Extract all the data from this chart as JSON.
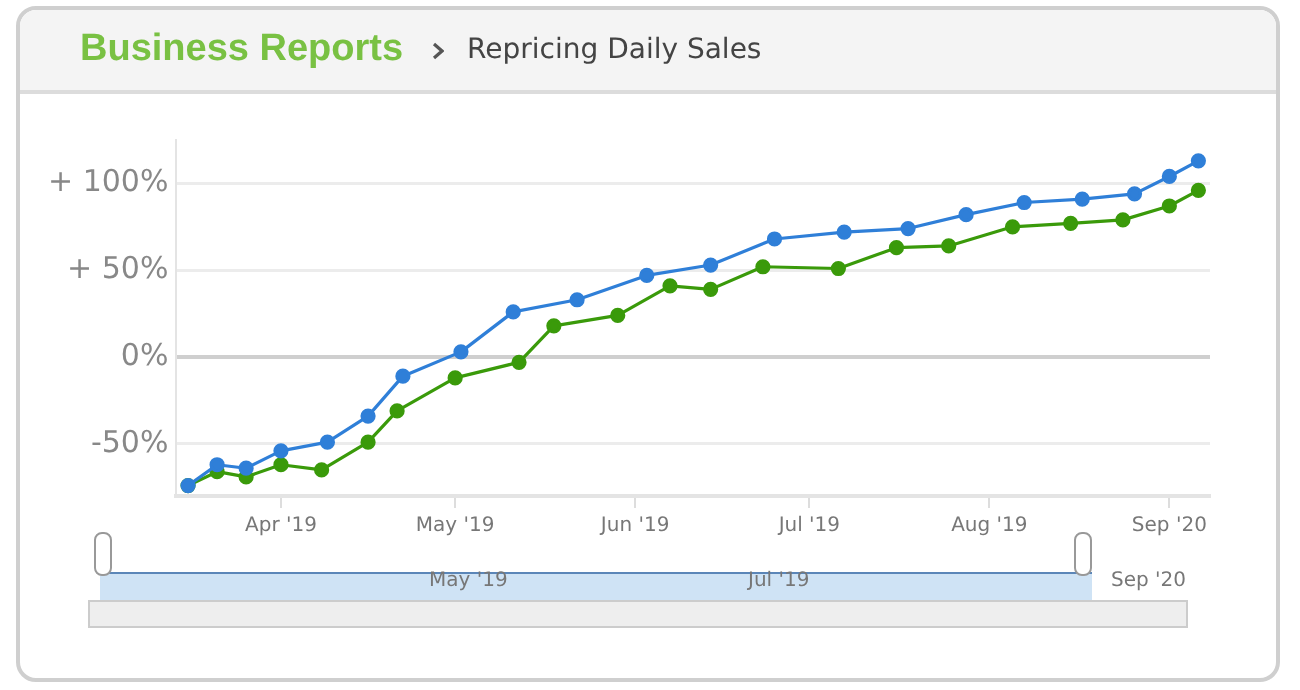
{
  "chart_data": {
    "type": "line",
    "title": "Business Reports",
    "subtitle": "Repricing Daily Sales",
    "annotations": [
      "May '19",
      "Jul '19",
      "Sep '20"
    ],
    "series": [
      {
        "color": "#2f7fd8",
        "x": [
          "2019-03-16",
          "2019-03-21",
          "2019-03-26",
          "2019-04-01",
          "2019-04-09",
          "2019-04-16",
          "2019-04-22",
          "2019-05-02",
          "2019-05-11",
          "2019-05-22",
          "2019-06-03",
          "2019-06-14",
          "2019-06-25",
          "2019-07-07",
          "2019-07-18",
          "2019-07-28",
          "2019-08-07",
          "2019-08-17",
          "2019-08-26",
          "2019-09-01",
          "2019-09-06"
        ],
        "values": [
          -74,
          -62,
          -64,
          -54,
          -49,
          -34,
          -11,
          3,
          26,
          33,
          47,
          53,
          68,
          72,
          74,
          82,
          89,
          91,
          94,
          104,
          113
        ]
      },
      {
        "color": "#3a9a0a",
        "x": [
          "2019-03-16",
          "2019-03-21",
          "2019-03-26",
          "2019-04-01",
          "2019-04-08",
          "2019-04-16",
          "2019-04-21",
          "2019-05-01",
          "2019-05-12",
          "2019-05-18",
          "2019-05-29",
          "2019-06-07",
          "2019-06-14",
          "2019-06-23",
          "2019-07-06",
          "2019-07-16",
          "2019-07-25",
          "2019-08-05",
          "2019-08-15",
          "2019-08-24",
          "2019-09-01",
          "2019-09-06"
        ],
        "values": [
          -74,
          -66,
          -69,
          -62,
          -65,
          -49,
          -31,
          -12,
          -3,
          18,
          24,
          41,
          39,
          52,
          51,
          63,
          64,
          75,
          77,
          79,
          87,
          96
        ]
      }
    ],
    "xlim": [
      "2019-03-14",
      "2019-09-08"
    ],
    "xticks": [
      {
        "value": "2019-04-01",
        "label": "Apr '19"
      },
      {
        "value": "2019-05-01",
        "label": "May '19"
      },
      {
        "value": "2019-06-01",
        "label": "Jun '19"
      },
      {
        "value": "2019-07-01",
        "label": "Jul '19"
      },
      {
        "value": "2019-08-01",
        "label": "Aug '19"
      },
      {
        "value": "2019-09-01",
        "label": "Sep '20"
      }
    ],
    "yticks": [
      {
        "value": -50,
        "label": "-50%"
      },
      {
        "value": 0,
        "label": "0%"
      },
      {
        "value": 50,
        "label": "+ 50%"
      },
      {
        "value": 100,
        "label": "+ 100%"
      }
    ],
    "ylim": [
      -80,
      125
    ],
    "grid": "y",
    "legend": false,
    "marker": "circle",
    "line_style": "solid"
  }
}
